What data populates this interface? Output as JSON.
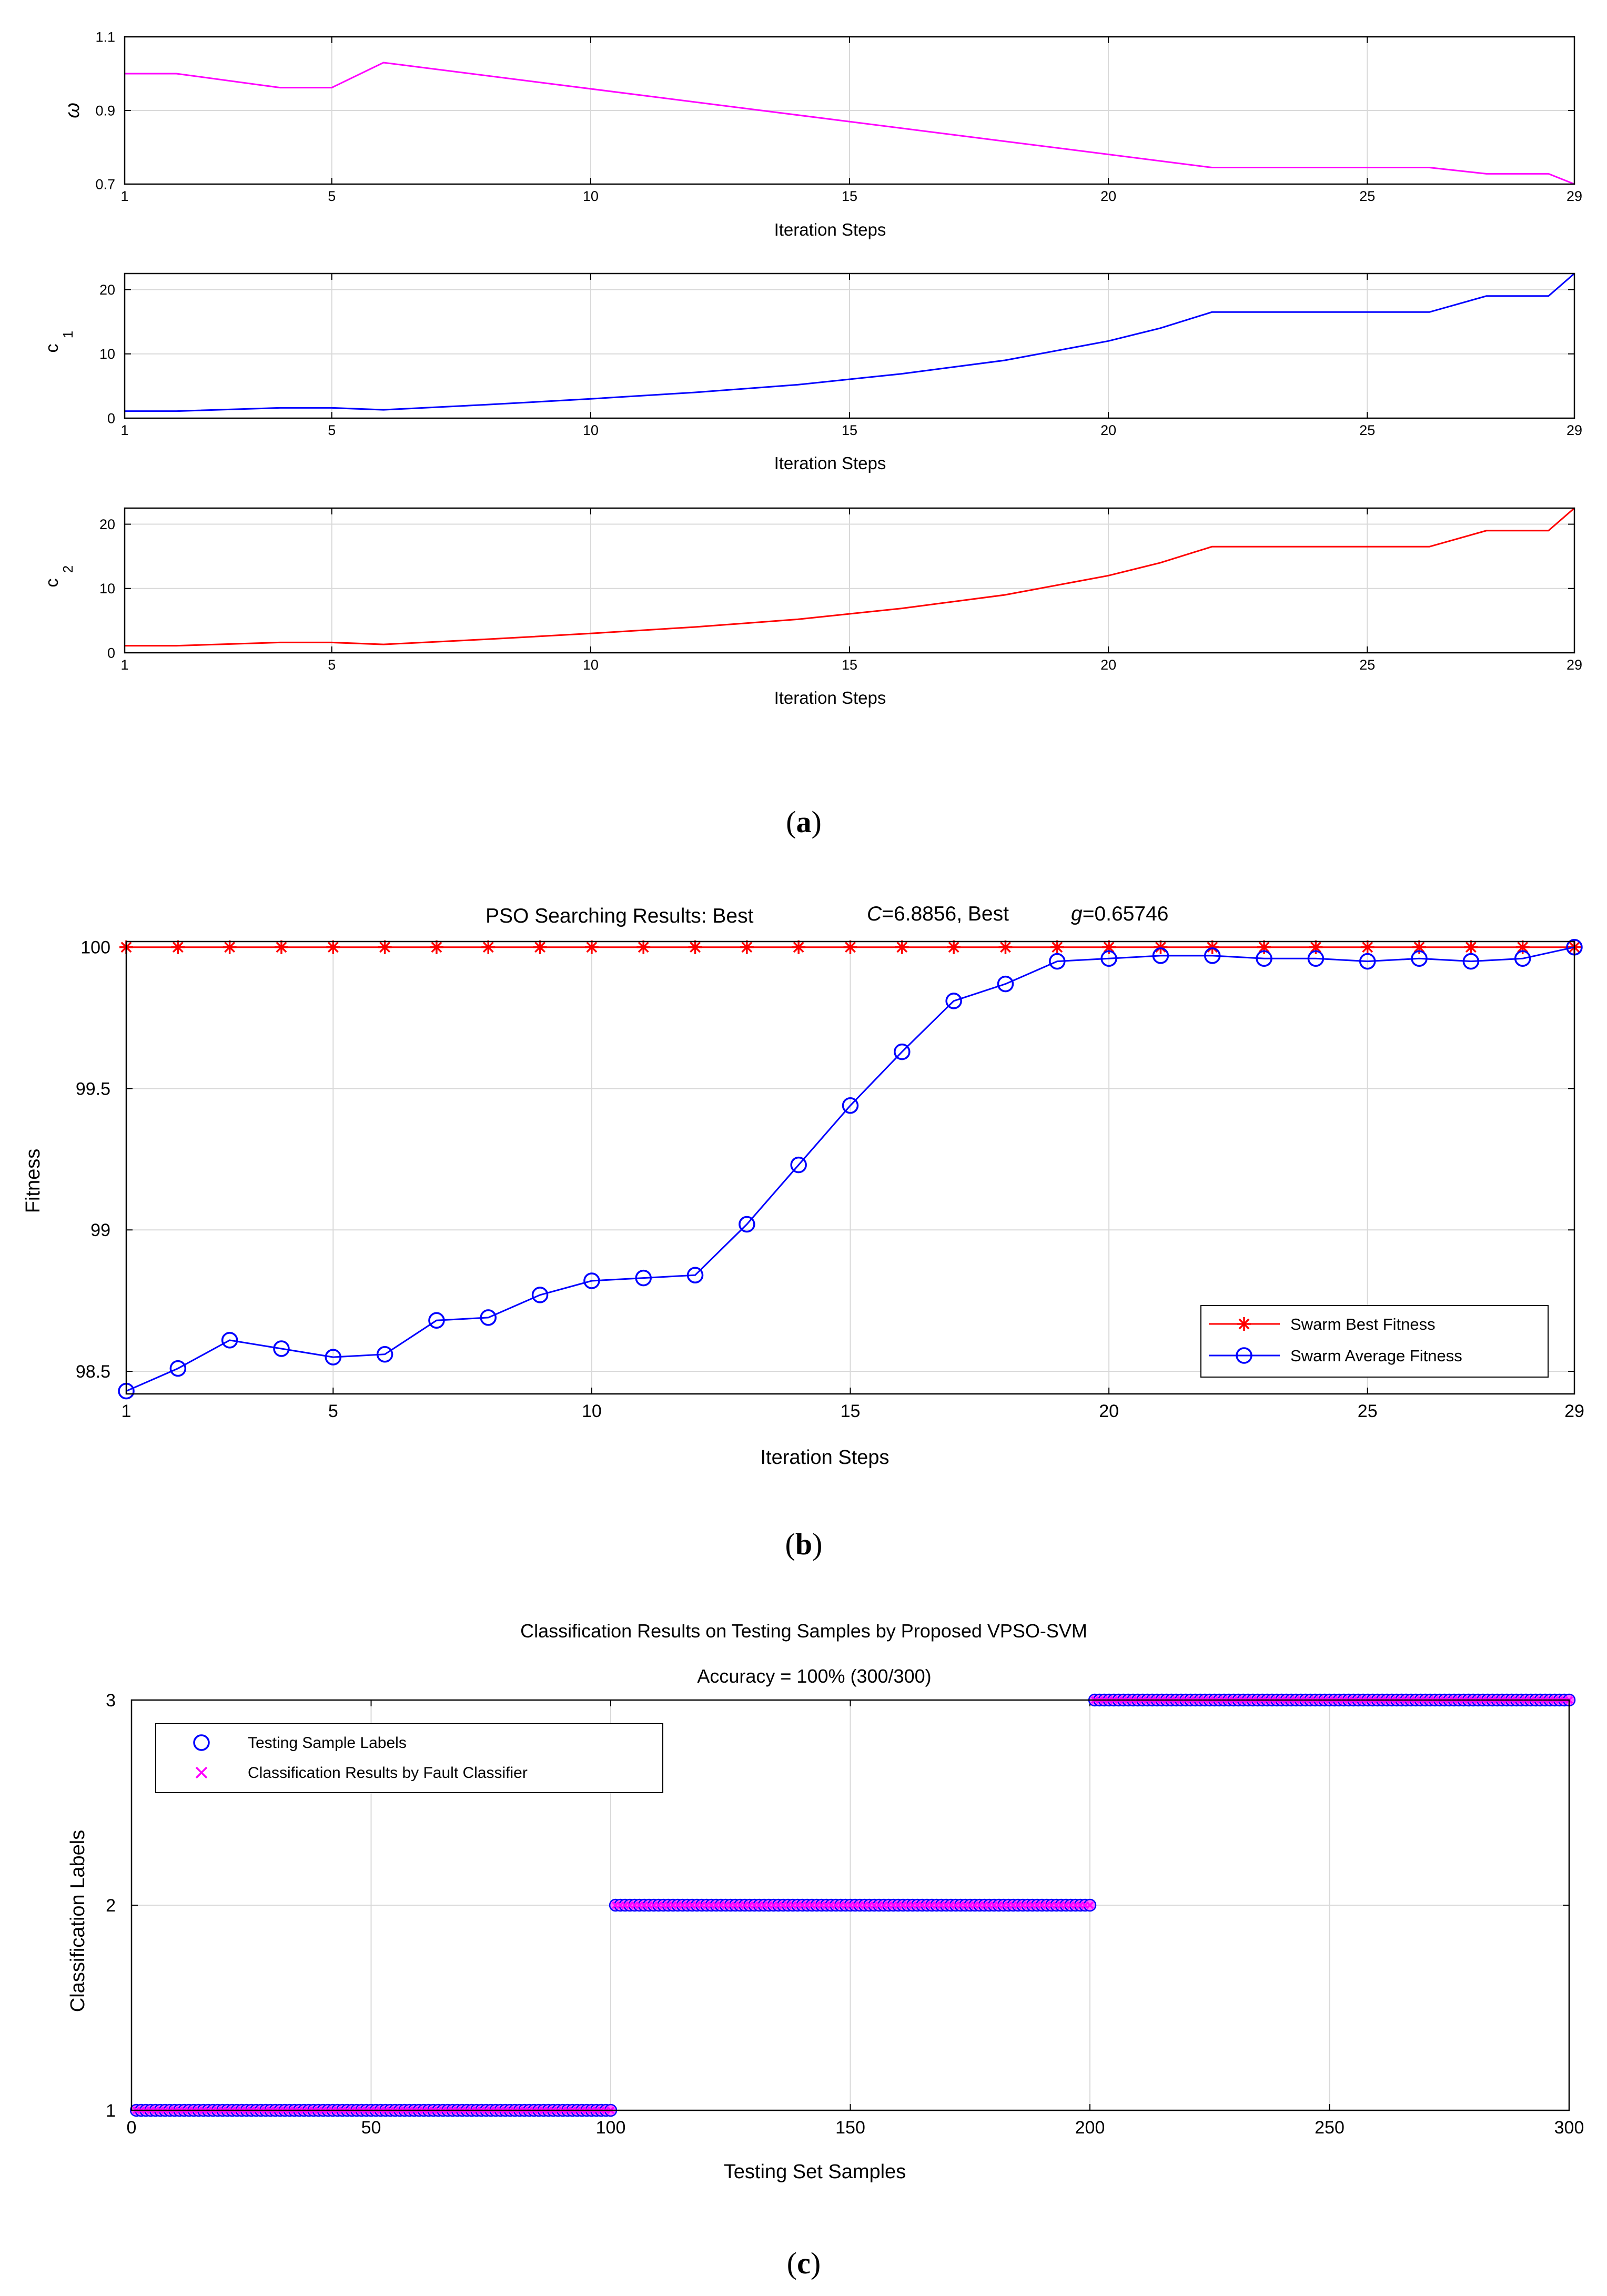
{
  "captions": {
    "a": "a",
    "b": "b",
    "c": "c"
  },
  "colors": {
    "omega": "#ff00ff",
    "c1": "#0000ff",
    "c2": "#ff0000",
    "best": "#ff0000",
    "avg": "#0000ff",
    "samples": "#0000ff",
    "results": "#ff00ff"
  },
  "chart_data": [
    {
      "id": "omega",
      "type": "line",
      "title": "",
      "xlabel": "Iteration Steps",
      "ylabel": "ω",
      "xlim": [
        1,
        29
      ],
      "ylim": [
        0.7,
        1.1
      ],
      "xticks": [
        1,
        5,
        10,
        15,
        20,
        25,
        29
      ],
      "yticks": [
        0.7,
        0.9,
        1.1
      ],
      "ytick_labels": [
        "0.7",
        "0.9",
        "1.1"
      ],
      "grid": true,
      "series": [
        {
          "name": "omega",
          "color": "#ff00ff",
          "x": [
            1,
            2,
            4,
            5,
            6,
            22,
            26.2,
            27.3,
            28.5,
            29
          ],
          "y": [
            1.0,
            1.0,
            0.962,
            0.962,
            1.03,
            0.745,
            0.745,
            0.728,
            0.728,
            0.7
          ]
        }
      ]
    },
    {
      "id": "c1",
      "type": "line",
      "title": "",
      "xlabel": "Iteration Steps",
      "ylabel": "c",
      "ylabel_sub": "1",
      "xlim": [
        1,
        29
      ],
      "ylim": [
        0,
        22.5
      ],
      "xticks": [
        1,
        5,
        10,
        15,
        20,
        25,
        29
      ],
      "yticks": [
        0,
        10,
        20
      ],
      "ytick_labels": [
        "0",
        "10",
        "20"
      ],
      "grid": true,
      "series": [
        {
          "name": "c1",
          "color": "#0000ff",
          "x": [
            1,
            2,
            4,
            5,
            6,
            8,
            10,
            12,
            14,
            16,
            18,
            20,
            21,
            22,
            26.2,
            27.3,
            28.5,
            29
          ],
          "y": [
            1.1,
            1.1,
            1.6,
            1.6,
            1.3,
            2.1,
            3.0,
            4.0,
            5.2,
            6.9,
            9.0,
            12.0,
            14.0,
            16.5,
            16.5,
            19.0,
            19.0,
            22.5
          ]
        }
      ]
    },
    {
      "id": "c2",
      "type": "line",
      "title": "",
      "xlabel": "Iteration Steps",
      "ylabel": "c",
      "ylabel_sub": "2",
      "xlim": [
        1,
        29
      ],
      "ylim": [
        0,
        22.5
      ],
      "xticks": [
        1,
        5,
        10,
        15,
        20,
        25,
        29
      ],
      "yticks": [
        0,
        10,
        20
      ],
      "ytick_labels": [
        "0",
        "10",
        "20"
      ],
      "grid": true,
      "series": [
        {
          "name": "c2",
          "color": "#ff0000",
          "x": [
            1,
            2,
            4,
            5,
            6,
            8,
            10,
            12,
            14,
            16,
            18,
            20,
            21,
            22,
            26.2,
            27.3,
            28.5,
            29
          ],
          "y": [
            1.1,
            1.1,
            1.6,
            1.6,
            1.3,
            2.1,
            3.0,
            4.0,
            5.2,
            6.9,
            9.0,
            12.0,
            14.0,
            16.5,
            16.5,
            19.0,
            19.0,
            22.5
          ]
        }
      ]
    },
    {
      "id": "fitness",
      "type": "line",
      "title": "PSO Searching Results: Best",
      "title_c": "C",
      "title_c_value": "=6.8856, Best",
      "title_g": "g",
      "title_g_value": "=0.65746",
      "xlabel": "Iteration Steps",
      "ylabel": "Fitness",
      "xlim": [
        1,
        29
      ],
      "ylim": [
        98.42,
        100.02
      ],
      "xticks": [
        1,
        5,
        10,
        15,
        20,
        25,
        29
      ],
      "yticks": [
        98.5,
        99,
        99.5,
        100
      ],
      "ytick_labels": [
        "98.5",
        "99",
        "99.5",
        "100"
      ],
      "grid": true,
      "legend": {
        "position": "bottom-right",
        "entries": [
          "Swarm Best Fitness",
          "Swarm Average Fitness"
        ]
      },
      "series": [
        {
          "name": "Swarm Best Fitness",
          "color": "#ff0000",
          "marker": "star",
          "x": [
            1,
            2,
            3,
            4,
            5,
            6,
            7,
            8,
            9,
            10,
            11,
            12,
            13,
            14,
            15,
            16,
            17,
            18,
            19,
            20,
            21,
            22,
            23,
            24,
            25,
            26,
            27,
            28,
            29
          ],
          "y": [
            100,
            100,
            100,
            100,
            100,
            100,
            100,
            100,
            100,
            100,
            100,
            100,
            100,
            100,
            100,
            100,
            100,
            100,
            100,
            100,
            100,
            100,
            100,
            100,
            100,
            100,
            100,
            100,
            100
          ]
        },
        {
          "name": "Swarm Average Fitness",
          "color": "#0000ff",
          "marker": "circle",
          "x": [
            1,
            2,
            3,
            4,
            5,
            6,
            7,
            8,
            9,
            10,
            11,
            12,
            13,
            14,
            15,
            16,
            17,
            18,
            19,
            20,
            21,
            22,
            23,
            24,
            25,
            26,
            27,
            28,
            29
          ],
          "y": [
            98.43,
            98.51,
            98.61,
            98.58,
            98.55,
            98.56,
            98.68,
            98.69,
            98.77,
            98.82,
            98.83,
            98.84,
            99.02,
            99.23,
            99.44,
            99.63,
            99.81,
            99.87,
            99.95,
            99.96,
            99.97,
            99.97,
            99.96,
            99.96,
            99.95,
            99.96,
            99.95,
            99.96,
            100
          ]
        }
      ]
    },
    {
      "id": "classification",
      "type": "scatter",
      "title": "Classification Results on Testing Samples by Proposed VPSO-SVM",
      "subtitle": "Accuracy = 100% (300/300)",
      "xlabel": "Testing Set Samples",
      "ylabel": "Classification Labels",
      "xlim": [
        0,
        300
      ],
      "ylim": [
        1,
        3
      ],
      "xticks": [
        0,
        50,
        100,
        150,
        200,
        250,
        300
      ],
      "yticks": [
        1,
        2,
        3
      ],
      "ytick_labels": [
        "1",
        "2",
        "3"
      ],
      "grid": true,
      "legend": {
        "position": "top-left",
        "entries": [
          "Testing Sample Labels",
          "Classification Results by Fault Classifier"
        ]
      },
      "series": [
        {
          "name": "Testing Sample Labels",
          "color": "#0000ff",
          "marker": "circle",
          "segments": [
            {
              "from": 1,
              "to": 100,
              "label": 1
            },
            {
              "from": 101,
              "to": 200,
              "label": 2
            },
            {
              "from": 201,
              "to": 300,
              "label": 3
            }
          ]
        },
        {
          "name": "Classification Results by Fault Classifier",
          "color": "#ff00ff",
          "marker": "x",
          "segments": [
            {
              "from": 1,
              "to": 100,
              "label": 1
            },
            {
              "from": 101,
              "to": 200,
              "label": 2
            },
            {
              "from": 201,
              "to": 300,
              "label": 3
            }
          ]
        }
      ]
    }
  ]
}
